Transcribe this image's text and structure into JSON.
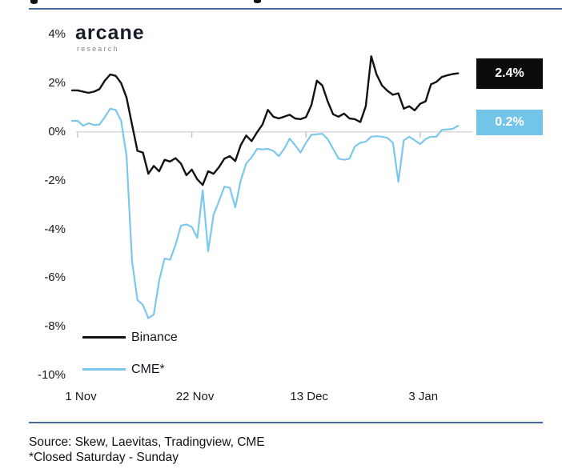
{
  "header": {
    "logo_title": "arcane",
    "logo_subtitle": "research"
  },
  "colors": {
    "binance_line": "#121212",
    "cme_line": "#7cc8ec",
    "binance_box_bg": "#0b0b0d",
    "cme_box_bg": "#72c4e9",
    "divider_rule": "#48699b",
    "zero_gridline": "#dadada",
    "tick": "#c8c8c8"
  },
  "chart_data": {
    "type": "line",
    "title": "",
    "xlabel": "",
    "ylabel": "",
    "unit": "%",
    "x_axis": {
      "ticks": [
        {
          "label": "1 Nov",
          "day": 0
        },
        {
          "label": "22 Nov",
          "day": 21
        },
        {
          "label": "13 Dec",
          "day": 42
        },
        {
          "label": "3 Jan",
          "day": 63
        }
      ]
    },
    "y_axis": {
      "range": [
        -10,
        4
      ],
      "ticks": [
        {
          "label": "4%",
          "value": 4
        },
        {
          "label": "2%",
          "value": 2
        },
        {
          "label": "0%",
          "value": 0
        },
        {
          "label": "-2%",
          "value": -2
        },
        {
          "label": "-4%",
          "value": -4
        },
        {
          "label": "-6%",
          "value": -6
        },
        {
          "label": "-8%",
          "value": -8
        },
        {
          "label": "-10%",
          "value": -10
        }
      ],
      "gridlines_at": [
        0
      ]
    },
    "legend_position": "bottom-left-inside",
    "series": [
      {
        "name": "Binance",
        "color": "#121212",
        "end_label": "2.4%",
        "values": [
          1.7,
          1.65,
          1.6,
          1.65,
          1.75,
          2.1,
          2.35,
          2.3,
          2.0,
          1.4,
          0.3,
          -0.78,
          -0.85,
          -1.72,
          -1.4,
          -1.62,
          -1.15,
          -1.22,
          -1.08,
          -1.3,
          -1.78,
          -1.55,
          -1.95,
          -2.18,
          -1.62,
          -1.72,
          -1.45,
          -1.1,
          -1.0,
          -1.2,
          -0.55,
          -0.15,
          -0.38,
          -0.02,
          0.3,
          0.9,
          0.62,
          0.55,
          0.62,
          0.7,
          0.55,
          0.52,
          0.6,
          1.1,
          2.1,
          1.9,
          1.25,
          0.72,
          0.62,
          0.75,
          0.55,
          0.52,
          0.4,
          1.05,
          3.1,
          2.35,
          1.9,
          1.68,
          1.52,
          1.58,
          0.95,
          1.05,
          0.88,
          1.15,
          1.25,
          1.95,
          2.05,
          2.25,
          2.32,
          2.37,
          2.4
        ]
      },
      {
        "name": "CME*",
        "color": "#7cc8ec",
        "end_label": "0.2%",
        "values": [
          0.45,
          0.25,
          0.35,
          0.28,
          0.3,
          0.6,
          0.95,
          0.9,
          0.45,
          -1.0,
          -5.3,
          -6.9,
          -7.1,
          -7.65,
          -7.5,
          -6.1,
          -5.2,
          -5.25,
          -4.65,
          -3.85,
          -3.8,
          -3.9,
          -4.35,
          -2.4,
          -4.9,
          -3.4,
          -2.85,
          -2.25,
          -2.3,
          -3.1,
          -2.0,
          -1.3,
          -1.05,
          -0.7,
          -0.72,
          -0.7,
          -0.78,
          -1.0,
          -0.7,
          -0.28,
          -0.55,
          -0.85,
          -0.45,
          -0.12,
          -0.1,
          -0.08,
          -0.3,
          -0.7,
          -1.1,
          -1.15,
          -1.1,
          -0.6,
          -0.45,
          -0.4,
          -0.2,
          -0.18,
          -0.2,
          -0.25,
          -0.45,
          -2.05,
          -0.35,
          -0.2,
          -0.35,
          -0.5,
          -0.3,
          -0.2,
          -0.2,
          0.08,
          0.1,
          0.12,
          0.25
        ]
      }
    ]
  },
  "footer": {
    "source": "Source: Skew, Laevitas, Tradingview, CME",
    "note": "*Closed Saturday - Sunday"
  }
}
